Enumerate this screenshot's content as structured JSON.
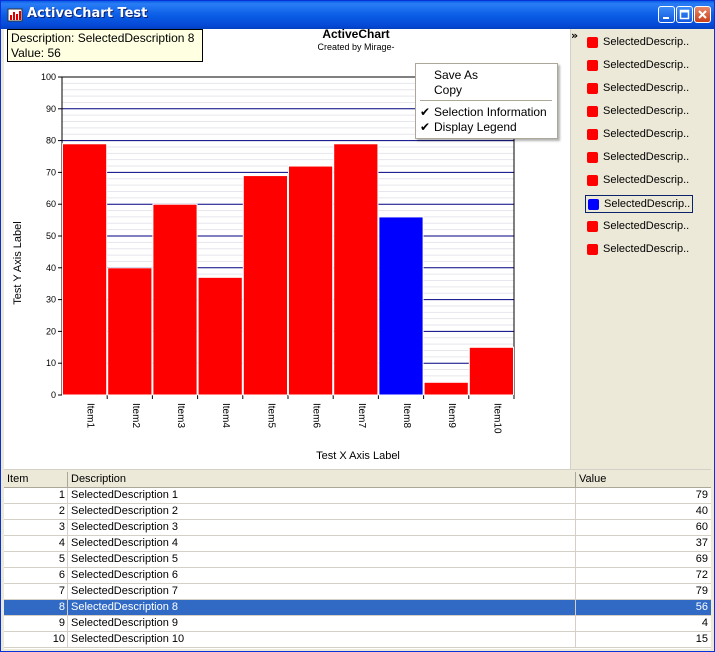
{
  "window": {
    "title": "ActiveChart Test"
  },
  "tooltip": {
    "line1": "Description: SelectedDescription 8",
    "line2": "Value: 56"
  },
  "chart_data": {
    "type": "bar",
    "title": "ActiveChart",
    "subtitle": "Created by Mirage-",
    "xlabel": "Test X Axis Label",
    "ylabel": "Test Y Axis Label",
    "categories": [
      "Item1",
      "Item2",
      "Item3",
      "Item4",
      "Item5",
      "Item6",
      "Item7",
      "Item8",
      "Item9",
      "Item10"
    ],
    "values": [
      79,
      40,
      60,
      37,
      69,
      72,
      79,
      56,
      4,
      15
    ],
    "selected_index": 7,
    "ylim": [
      0,
      100
    ],
    "yticks": [
      0,
      10,
      20,
      30,
      40,
      50,
      60,
      70,
      80,
      90,
      100
    ],
    "grid": true,
    "bar_color": "#ff0000",
    "selected_color": "#0000ff"
  },
  "legend": {
    "toggle": "»",
    "items": [
      {
        "label": "SelectedDescrip..",
        "color": "#ff0000"
      },
      {
        "label": "SelectedDescrip..",
        "color": "#ff0000"
      },
      {
        "label": "SelectedDescrip..",
        "color": "#ff0000"
      },
      {
        "label": "SelectedDescrip..",
        "color": "#ff0000"
      },
      {
        "label": "SelectedDescrip..",
        "color": "#ff0000"
      },
      {
        "label": "SelectedDescrip..",
        "color": "#ff0000"
      },
      {
        "label": "SelectedDescrip..",
        "color": "#ff0000"
      },
      {
        "label": "SelectedDescrip..",
        "color": "#0000ff"
      },
      {
        "label": "SelectedDescrip..",
        "color": "#ff0000"
      },
      {
        "label": "SelectedDescrip..",
        "color": "#ff0000"
      }
    ],
    "selected_index": 7
  },
  "context_menu": {
    "items": [
      {
        "label": "Save As",
        "checked": false
      },
      {
        "label": "Copy",
        "checked": false
      },
      {
        "label": "Selection Information",
        "checked": true
      },
      {
        "label": "Display Legend",
        "checked": true
      }
    ],
    "check_glyph": "✔"
  },
  "grid": {
    "headers": [
      "Item",
      "Description",
      "Value"
    ],
    "rows": [
      {
        "item": "1",
        "desc": "SelectedDescription 1",
        "value": "79"
      },
      {
        "item": "2",
        "desc": "SelectedDescription 2",
        "value": "40"
      },
      {
        "item": "3",
        "desc": "SelectedDescription 3",
        "value": "60"
      },
      {
        "item": "4",
        "desc": "SelectedDescription 4",
        "value": "37"
      },
      {
        "item": "5",
        "desc": "SelectedDescription 5",
        "value": "69"
      },
      {
        "item": "6",
        "desc": "SelectedDescription 6",
        "value": "72"
      },
      {
        "item": "7",
        "desc": "SelectedDescription 7",
        "value": "79"
      },
      {
        "item": "8",
        "desc": "SelectedDescription 8",
        "value": "56"
      },
      {
        "item": "9",
        "desc": "SelectedDescription 9",
        "value": "4"
      },
      {
        "item": "10",
        "desc": "SelectedDescription 10",
        "value": "15"
      }
    ],
    "selected_index": 7
  }
}
